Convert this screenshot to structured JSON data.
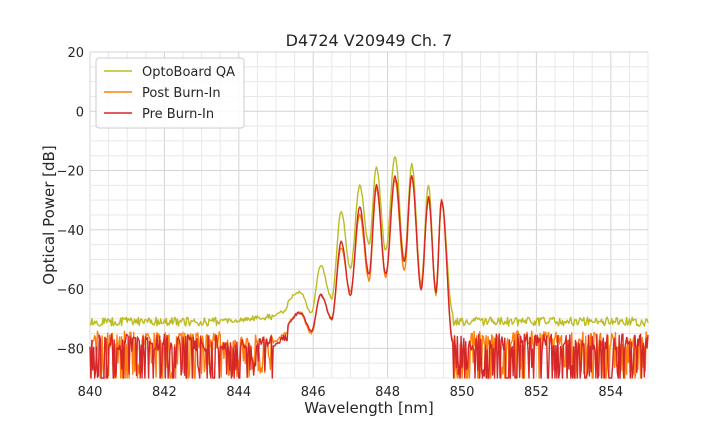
{
  "chart_data": {
    "type": "line",
    "title": "D4724 V20949 Ch. 7",
    "xlabel": "Wavelength [nm]",
    "ylabel": "Optical Power [dB]",
    "xlim": [
      840,
      855
    ],
    "ylim": [
      -90,
      20
    ],
    "xticks": [
      "840",
      "842",
      "844",
      "846",
      "848",
      "850",
      "852",
      "854"
    ],
    "yticks": [
      "20",
      "0",
      "−20",
      "−40",
      "−60",
      "−80"
    ],
    "grid": true,
    "legend_position": "top-left",
    "series": [
      {
        "name": "OptoBoard QA",
        "color": "#bcbd22",
        "noise_floor": -71,
        "noise_amplitude": 3,
        "peaks": [
          {
            "x": 845.65,
            "y": -61
          },
          {
            "x": 846.2,
            "y": -52
          },
          {
            "x": 846.75,
            "y": -34
          },
          {
            "x": 847.25,
            "y": -25
          },
          {
            "x": 847.7,
            "y": -19
          },
          {
            "x": 848.2,
            "y": -15
          },
          {
            "x": 848.65,
            "y": -18
          },
          {
            "x": 849.1,
            "y": -25
          },
          {
            "x": 849.45,
            "y": -31
          }
        ],
        "valleys": [
          {
            "x": 845.95,
            "y": -68
          },
          {
            "x": 846.5,
            "y": -63
          },
          {
            "x": 847.0,
            "y": -53
          },
          {
            "x": 847.5,
            "y": -45
          },
          {
            "x": 847.95,
            "y": -47
          },
          {
            "x": 848.45,
            "y": -50
          },
          {
            "x": 848.9,
            "y": -58
          },
          {
            "x": 849.3,
            "y": -62
          }
        ]
      },
      {
        "name": "Post Burn-In",
        "color": "#ff7f0e",
        "noise_floor": -80,
        "noise_amplitude": 9,
        "peaks": [
          {
            "x": 845.65,
            "y": -68
          },
          {
            "x": 846.2,
            "y": -62
          },
          {
            "x": 846.75,
            "y": -46
          },
          {
            "x": 847.25,
            "y": -35
          },
          {
            "x": 847.7,
            "y": -26
          },
          {
            "x": 848.2,
            "y": -23
          },
          {
            "x": 848.65,
            "y": -22
          },
          {
            "x": 849.1,
            "y": -30
          },
          {
            "x": 849.45,
            "y": -30
          }
        ],
        "valleys": [
          {
            "x": 845.95,
            "y": -75
          },
          {
            "x": 846.5,
            "y": -70
          },
          {
            "x": 847.0,
            "y": -61
          },
          {
            "x": 847.5,
            "y": -57
          },
          {
            "x": 847.95,
            "y": -56
          },
          {
            "x": 848.45,
            "y": -54
          },
          {
            "x": 848.9,
            "y": -59
          },
          {
            "x": 849.3,
            "y": -60
          }
        ]
      },
      {
        "name": "Pre Burn-In",
        "color": "#d62728",
        "noise_floor": -81,
        "noise_amplitude": 9,
        "peaks": [
          {
            "x": 845.65,
            "y": -68
          },
          {
            "x": 846.2,
            "y": -62
          },
          {
            "x": 846.75,
            "y": -44
          },
          {
            "x": 847.25,
            "y": -32
          },
          {
            "x": 847.7,
            "y": -25
          },
          {
            "x": 848.2,
            "y": -22
          },
          {
            "x": 848.65,
            "y": -22
          },
          {
            "x": 849.1,
            "y": -29
          },
          {
            "x": 849.45,
            "y": -30
          }
        ],
        "valleys": [
          {
            "x": 845.95,
            "y": -74
          },
          {
            "x": 846.5,
            "y": -70
          },
          {
            "x": 847.0,
            "y": -62
          },
          {
            "x": 847.5,
            "y": -55
          },
          {
            "x": 847.95,
            "y": -55
          },
          {
            "x": 848.45,
            "y": -51
          },
          {
            "x": 848.9,
            "y": -60
          },
          {
            "x": 849.3,
            "y": -61
          }
        ]
      }
    ]
  }
}
